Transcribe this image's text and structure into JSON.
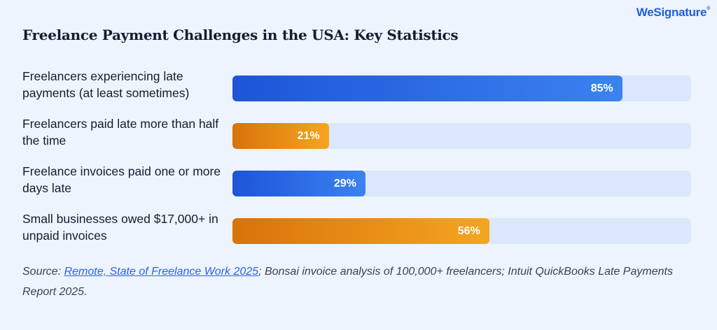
{
  "brand": {
    "name": "WeSignature",
    "mark": "®"
  },
  "chart_data": {
    "type": "bar",
    "orientation": "horizontal",
    "title": "Freelance Payment Challenges in the USA: Key Statistics",
    "xlim": [
      0,
      100
    ],
    "unit": "%",
    "categories": [
      "Freelancers experiencing late payments (at least sometimes)",
      "Freelancers paid late more than half the time",
      "Freelance invoices paid one or more days late",
      "Small businesses owed $17,000+ in unpaid invoices"
    ],
    "values": [
      85,
      21,
      29,
      56
    ],
    "value_labels": [
      "85%",
      "21%",
      "29%",
      "56%"
    ],
    "bar_colors": [
      "blue",
      "orange",
      "blue",
      "orange"
    ],
    "colors": {
      "blue": "#2563eb",
      "orange": "#f29a17",
      "track": "#dbe8fb"
    }
  },
  "source": {
    "prefix": "Source: ",
    "link_text": "Remote, State of Freelance Work 2025",
    "suffix": "; Bonsai invoice analysis of 100,000+ freelancers; Intuit QuickBooks Late Payments Report 2025."
  }
}
